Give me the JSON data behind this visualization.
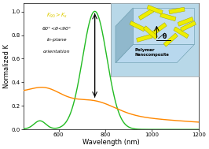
{
  "xlabel": "Wavelength (nm)",
  "ylabel": "Normalized K",
  "xlim": [
    450,
    1200
  ],
  "ylim": [
    0.0,
    1.07
  ],
  "yticks": [
    0.0,
    0.2,
    0.4,
    0.6,
    0.8,
    1.0
  ],
  "xticks": [
    600,
    800,
    1000,
    1200
  ],
  "background_color": "#ffffff",
  "green_color": "#22bb22",
  "orange_color": "#ff8800",
  "inset_bg_color": "#b8d8e8",
  "inset_top_color": "#c8e4f0",
  "inset_side_color": "#90b8cc",
  "nanorod_color": "#eeee00",
  "nanorod_edge_color": "#999900"
}
